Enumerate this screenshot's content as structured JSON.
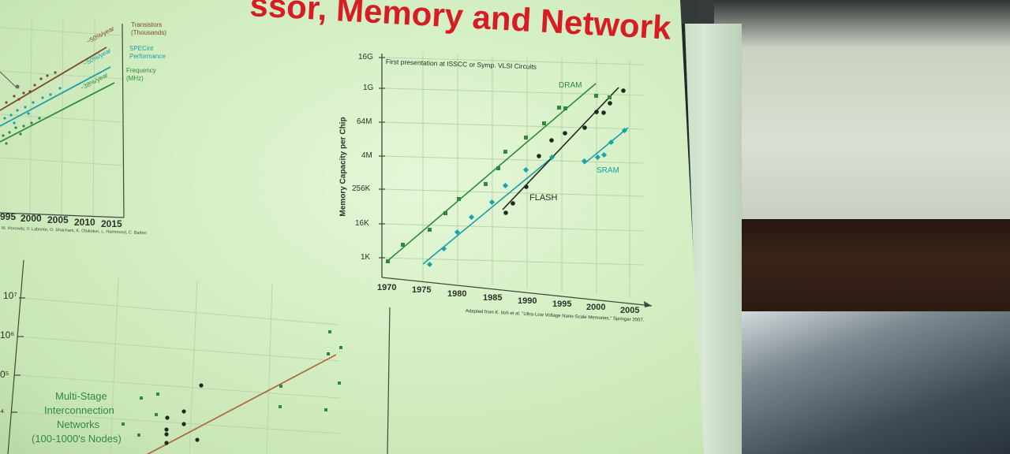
{
  "slide": {
    "title": "ssor, Memory and Network",
    "colors": {
      "title": "#d71c24",
      "dram": "#2e8b3e",
      "sram": "#1aa0a8",
      "flash": "#1f2a1f"
    }
  },
  "top_left_chart": {
    "legend": {
      "transistors": "Transistors (Thousands)",
      "specint": "SPECint Performance",
      "frequency": "Frequency (MHz)"
    },
    "rates": [
      "~50%/year",
      "~50%/year",
      "~38%/year"
    ],
    "x_ticks": [
      "995",
      "2000",
      "2005",
      "2010",
      "2015"
    ],
    "credit": "M. Horowitz, F. Labonte, O. Shacham, K. Olukotun, L. Hammond, C. Batten"
  },
  "bottom_left_chart": {
    "y_ticks": [
      "10⁷",
      "10⁶",
      "0⁵",
      "⁴"
    ],
    "label": [
      "Multi-Stage",
      "Interconnection",
      "Networks",
      "(100-1000's Nodes)"
    ]
  },
  "memory_chart": {
    "note": "First presentation at ISSCC or Symp. VLSI Circuits",
    "ylabel": "Memory Capacity per Chip",
    "y_ticks": [
      "16G",
      "1G",
      "64M",
      "4M",
      "256K",
      "16K",
      "1K"
    ],
    "x_ticks": [
      "1970",
      "1975",
      "1980",
      "1985",
      "1990",
      "1995",
      "2000",
      "2005"
    ],
    "source": "Adapted from K. Itoh et al. \"Ultra-Low Voltage Nano-Scale Memories,\" Springer 2007.",
    "series_labels": {
      "dram": "DRAM",
      "sram": "SRAM",
      "flash": "FLASH"
    }
  },
  "chart_data": [
    {
      "type": "scatter",
      "title": "",
      "ylabel": "Memory Capacity per Chip",
      "y_scale": "log",
      "xlim": [
        1970,
        2005
      ],
      "series": [
        {
          "name": "DRAM",
          "x": [
            1970,
            1972,
            1975,
            1977,
            1980,
            1984,
            1986,
            1987,
            1990,
            1992,
            1994,
            1995,
            2000,
            2002
          ],
          "y": [
            "1K",
            "4K",
            "16K",
            "64K",
            "256K",
            "1M",
            "4M",
            "16M",
            "64M",
            "256M",
            "1G",
            "1G",
            "4G",
            "2G"
          ]
        },
        {
          "name": "SRAM",
          "x": [
            1975,
            1978,
            1981,
            1984,
            1986,
            1990,
            1993,
            1998,
            2000,
            2002,
            2004
          ],
          "y": [
            "1K",
            "2K",
            "4K",
            "16K",
            "64K",
            "256K",
            "1M",
            "4M",
            "4M",
            "16M",
            "32M"
          ]
        },
        {
          "name": "FLASH",
          "x": [
            1987,
            1989,
            1990,
            1992,
            1994,
            1996,
            1999,
            2000,
            2001,
            2003
          ],
          "y": [
            "64K",
            "256K",
            "256K",
            "4M",
            "8M",
            "32M",
            "128M",
            "512M",
            "1G",
            "2G"
          ]
        }
      ]
    }
  ]
}
